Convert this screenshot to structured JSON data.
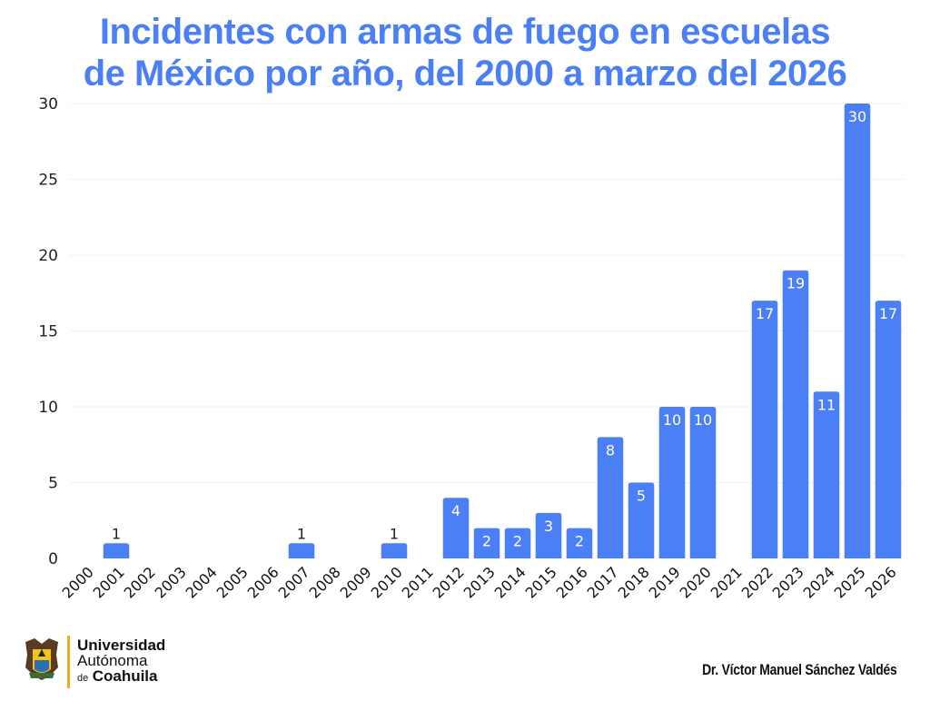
{
  "title_lines": [
    "Incidentes con armas de fuego en escuelas",
    "de México por año, del 2000 a marzo del 2026"
  ],
  "chart_data": {
    "type": "bar",
    "title": "Incidentes con armas de fuego en escuelas de México por año, del 2000 a marzo del 2026",
    "xlabel": "",
    "ylabel": "",
    "categories": [
      "2000",
      "2001",
      "2002",
      "2003",
      "2004",
      "2005",
      "2006",
      "2007",
      "2008",
      "2009",
      "2010",
      "2011",
      "2012",
      "2013",
      "2014",
      "2015",
      "2016",
      "2017",
      "2018",
      "2019",
      "2020",
      "2021",
      "2022",
      "2023",
      "2024",
      "2025",
      "2026"
    ],
    "values": [
      0,
      1,
      0,
      0,
      0,
      0,
      0,
      1,
      0,
      0,
      1,
      0,
      4,
      2,
      2,
      3,
      2,
      8,
      5,
      10,
      10,
      0,
      17,
      19,
      11,
      30,
      17
    ],
    "ylim": [
      0,
      30
    ],
    "yticks": [
      0,
      5,
      10,
      15,
      20,
      25,
      30
    ],
    "grid": true,
    "legend": "none",
    "bar_color": "#4a7ff5",
    "data_labels": true
  },
  "footer": {
    "university_line1": "Universidad",
    "university_line2": "Autónoma",
    "university_line3_prefix": "de",
    "university_line3_main": "Coahuila",
    "author": "Dr. Víctor Manuel Sánchez Valdés"
  }
}
